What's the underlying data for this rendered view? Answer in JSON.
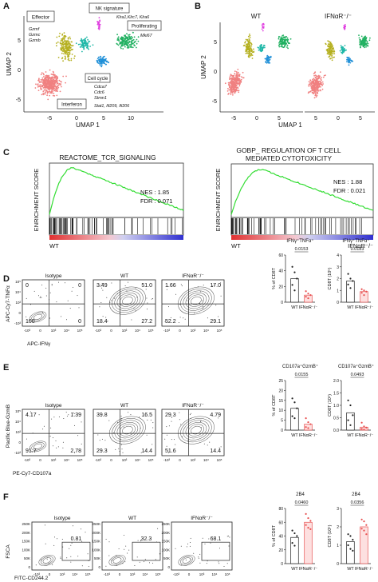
{
  "panels": {
    "A": "A",
    "B": "B",
    "C": "C",
    "D": "D",
    "E": "E",
    "F": "F"
  },
  "umap_a": {
    "xlabel": "UMAP 1",
    "ylabel": "UMAP 2",
    "xticks": [
      "-5",
      "0",
      "5",
      "10"
    ],
    "yticks": [
      "5",
      "0",
      "-5"
    ],
    "clusters": {
      "effector": "Effector",
      "effector_genes": [
        "Gzmf",
        "Gzmc",
        "Gzmb"
      ],
      "nk": "NK signature",
      "nk_genes": "Klra1,Klrc7, Klra6",
      "proliferating": "Proliferating",
      "proliferating_genes": "Mki67",
      "cellcycle": "Cell cycle",
      "cellcycle_genes": [
        "Cdca7",
        "Cdc6",
        "Stmn1"
      ],
      "interferon": "Interferon",
      "interferon_genes": "Stat1, Ifi209, Ifi206"
    }
  },
  "umap_b": {
    "wt": "WT",
    "ko": "IFNαR⁻/⁻",
    "xlabel": "UMAP 1",
    "ylabel": "UMAP 2",
    "xticks": [
      "-5",
      "0",
      "5",
      "5",
      "0",
      "5"
    ],
    "yticks": [
      "5",
      "0",
      "-5"
    ]
  },
  "gsea": [
    {
      "title": "REACTOME_TCR_SIGNALING",
      "nes": "NES : 1.85",
      "fdr": "FDR : 0.071",
      "ylabel": "ENRICHMENT SCORE",
      "left": "WT",
      "right": ""
    },
    {
      "title": "GOBP_ REGULATION OF T CELL",
      "title2": "MEDIATED CYTOTOXICITY",
      "nes": "NES : 1.88",
      "fdr": "FDR : 0.021",
      "ylabel": "ENRICHMENT SCORE",
      "left": "WT",
      "right": "IFNαR⁻/⁻"
    }
  ],
  "flow_d": {
    "titles": [
      "Isotype",
      "WT",
      "IFNαR⁻/⁻"
    ],
    "ylabel": "APC-Cy7-TNFα",
    "xlabel": "APC-IFNγ",
    "quadrants": [
      [
        "0",
        "0",
        "100",
        "0"
      ],
      [
        "3.49",
        "51.0",
        "18.4",
        "27.2"
      ],
      [
        "1.66",
        "17.0",
        "52.2",
        "29.1"
      ]
    ],
    "xticks": [
      "-10³",
      "0",
      "10³",
      "10⁴",
      "10⁵"
    ],
    "yticks": [
      "10⁵",
      "10⁴",
      "10³",
      "0",
      "-10³"
    ]
  },
  "flow_e": {
    "titles": [
      "Isotype",
      "WT",
      "IFNαR⁻/⁻"
    ],
    "ylabel": "Pacific Blue-GzmB",
    "xlabel": "PE-Cy7-CD107a",
    "quadrants": [
      [
        "4.17",
        "1.39",
        "91.7",
        "2.78"
      ],
      [
        "39.8",
        "16.5",
        "29.3",
        "14.4"
      ],
      [
        "29.3",
        "4.79",
        "51.6",
        "14.4"
      ]
    ],
    "xticks": [
      "-10³",
      "0",
      "10³",
      "10⁴",
      "10⁵"
    ],
    "yticks": [
      "10⁵",
      "10⁴",
      "10³",
      "0",
      "-10³"
    ]
  },
  "flow_f": {
    "titles": [
      "Isotype",
      "WT",
      "IFNαR⁻/⁻"
    ],
    "ylabel": "FSCA",
    "xlabel": "FITC-CD244.2",
    "gates": [
      "0.81",
      "32.3",
      "68.1"
    ],
    "yticks": [
      "250K",
      "200K",
      "150K",
      "100K",
      "50K",
      "0"
    ],
    "xticks": [
      "-10³",
      "0",
      "10³",
      "10⁴",
      "10⁵"
    ]
  },
  "chart_data": [
    {
      "type": "bar",
      "panel": "D1",
      "title": "IFNγ⁺TNFα⁺",
      "ylabel": "% of CD8T",
      "categories": [
        "WT",
        "IFNαR⁻/⁻"
      ],
      "values": [
        30,
        9
      ],
      "ylim": [
        0,
        60
      ],
      "yticks": [
        "0",
        "20",
        "40",
        "60"
      ],
      "pvalue": "0.0153",
      "points": [
        [
          45,
          38,
          30,
          22,
          15
        ],
        [
          14,
          11,
          9,
          7,
          5
        ]
      ]
    },
    {
      "type": "bar",
      "panel": "D2",
      "title": "IFNγ⁺TNFα⁺",
      "ylabel": "CD8T (10⁵)",
      "categories": [
        "WT",
        "IFNαR⁻/⁻"
      ],
      "values": [
        1.8,
        0.9
      ],
      "ylim": [
        0,
        4
      ],
      "yticks": [
        "0",
        "1",
        "2",
        "3",
        "4"
      ],
      "pvalue": "0.0183",
      "points": [
        [
          2.4,
          2.0,
          1.8,
          1.5,
          1.2
        ],
        [
          1.1,
          1.0,
          0.9,
          0.8,
          0.6
        ]
      ]
    },
    {
      "type": "bar",
      "panel": "E1",
      "title": "CD107a⁺GzmB⁺",
      "ylabel": "% of CD8T",
      "categories": [
        "WT",
        "IFNαR⁻/⁻"
      ],
      "values": [
        11,
        3
      ],
      "ylim": [
        0,
        25
      ],
      "yticks": [
        "0",
        "5",
        "10",
        "15",
        "20",
        "25"
      ],
      "pvalue": "0.0155",
      "points": [
        [
          16,
          14,
          11,
          7,
          6
        ],
        [
          6,
          4,
          3,
          1.5,
          1
        ]
      ]
    },
    {
      "type": "bar",
      "panel": "E2",
      "title": "CD107a⁺GzmB⁺",
      "ylabel": "CD8T (10⁵)",
      "categories": [
        "WT",
        "IFNαR⁻/⁻"
      ],
      "values": [
        0.7,
        0.12
      ],
      "ylim": [
        0,
        2
      ],
      "yticks": [
        "0.0",
        "0.5",
        "1.0",
        "1.5",
        "2.0"
      ],
      "pvalue": "0.0493",
      "points": [
        [
          1.2,
          1.0,
          0.6,
          0.4,
          0.2
        ],
        [
          0.3,
          0.15,
          0.1,
          0.05,
          0.02
        ]
      ]
    },
    {
      "type": "bar",
      "panel": "F1",
      "title": "2B4",
      "ylabel": "% of CD8T",
      "categories": [
        "WT",
        "IFNαR⁻/⁻"
      ],
      "values": [
        38,
        60
      ],
      "ylim": [
        0,
        80
      ],
      "yticks": [
        "0",
        "20",
        "40",
        "60",
        "80"
      ],
      "pvalue": "0.0460",
      "points": [
        [
          48,
          44,
          40,
          30,
          26
        ],
        [
          72,
          66,
          62,
          56,
          52,
          50
        ]
      ]
    },
    {
      "type": "bar",
      "panel": "F2",
      "title": "2B4",
      "ylabel": "CD8T (10⁵)",
      "categories": [
        "WT",
        "IFNαR⁻/⁻"
      ],
      "values": [
        1.2,
        2.0
      ],
      "ylim": [
        0,
        3
      ],
      "yticks": [
        "0",
        "1",
        "2",
        "3"
      ],
      "pvalue": "0.0356",
      "points": [
        [
          1.6,
          1.5,
          1.3,
          1.0,
          0.8,
          0.7
        ],
        [
          2.4,
          2.3,
          2.1,
          1.9,
          1.8,
          1.6
        ]
      ]
    }
  ]
}
